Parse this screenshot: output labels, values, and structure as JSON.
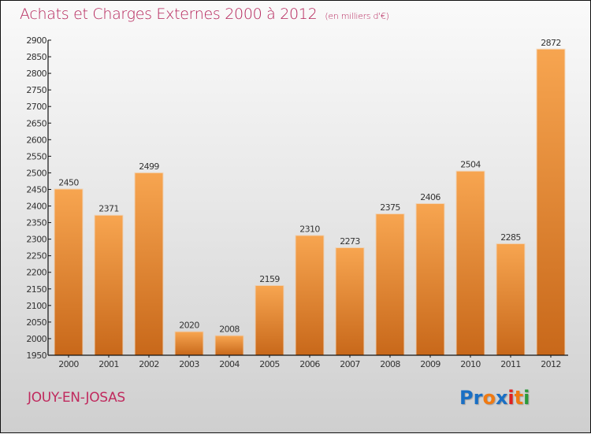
{
  "header": {
    "title": "Achats et Charges Externes 2000 à 2012",
    "subtitle": "(en milliers d'€)"
  },
  "footer": {
    "city": "JOUY-EN-JOSAS",
    "logo": {
      "text": "Proxiti",
      "letters": [
        {
          "char": "P",
          "color": "#1a6fc4"
        },
        {
          "char": "r",
          "color": "#1a6fc4"
        },
        {
          "char": "o",
          "color": "#f07a12"
        },
        {
          "char": "x",
          "color": "#1a6fc4"
        },
        {
          "char": "i",
          "color": "#e02020"
        },
        {
          "char": "t",
          "color": "#f07a12"
        },
        {
          "char": "i",
          "color": "#2a9a3a"
        }
      ]
    }
  },
  "colors": {
    "bar_top": "#f7a550",
    "bar_bottom": "#c8681a",
    "title": "#b5245a",
    "axis": "#111111"
  },
  "chart_data": {
    "type": "bar",
    "title": "Achats et Charges Externes 2000 à 2012",
    "subtitle": "(en milliers d'€)",
    "xlabel": "",
    "ylabel": "",
    "categories": [
      "2000",
      "2001",
      "2002",
      "2003",
      "2004",
      "2005",
      "2006",
      "2007",
      "2008",
      "2009",
      "2010",
      "2011",
      "2012"
    ],
    "values": [
      2450,
      2371,
      2499,
      2020,
      2008,
      2159,
      2310,
      2273,
      2375,
      2406,
      2504,
      2285,
      2872
    ],
    "ylim": [
      1950,
      2900
    ],
    "yticks": [
      1950,
      2000,
      2050,
      2100,
      2150,
      2200,
      2250,
      2300,
      2350,
      2400,
      2450,
      2500,
      2550,
      2600,
      2650,
      2700,
      2750,
      2800,
      2850,
      2900
    ],
    "grid": false,
    "legend": "none",
    "data_labels": true
  }
}
